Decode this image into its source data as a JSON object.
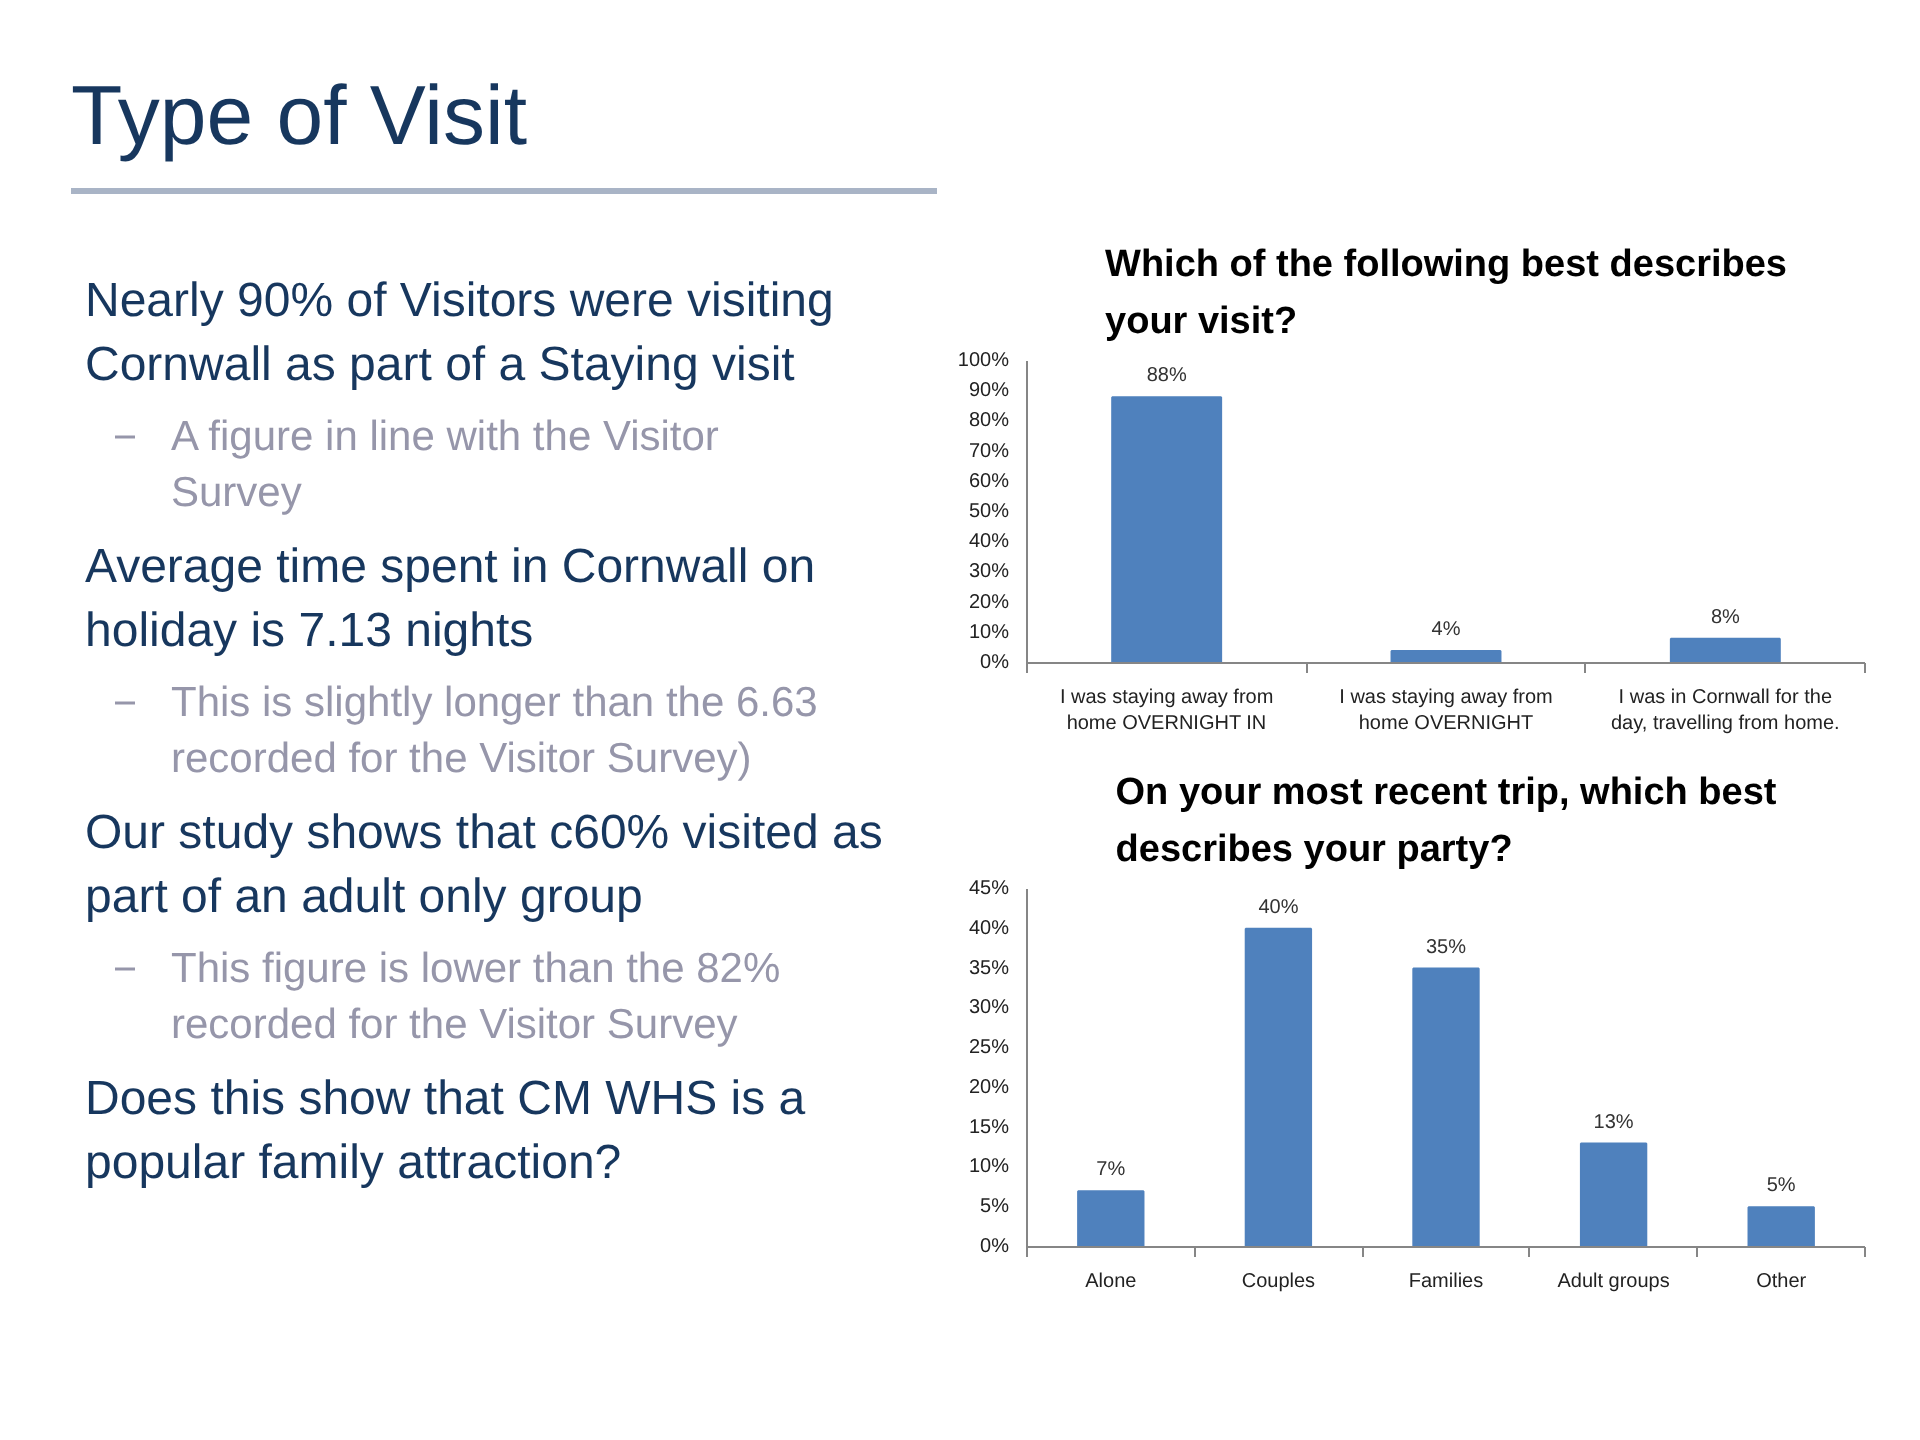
{
  "chart_data": [
    {
      "type": "other",
      "title": "Type of Visit",
      "annotations": [
        "Nearly 90% of Visitors were visiting Cornwall as part of a Staying visit",
        "A figure in line with the Visitor Survey",
        "Average time spent in Cornwall on holiday is 7.13 nights",
        "This is slightly longer than the 6.63 recorded for the Visitor Survey)",
        "Our study shows that c60% visited as part of an adult only group",
        "This figure is lower than the 82% recorded for the Visitor Survey",
        "Does this show that CM WHS is a popular family attraction?"
      ]
    },
    {
      "type": "bar",
      "title": "Which of the following best describes your visit?",
      "categories": [
        "I was staying away from home OVERNIGHT IN",
        "I was staying away from home OVERNIGHT",
        "I was in Cornwall for the day, travelling from home."
      ],
      "values": [
        88,
        4,
        8
      ],
      "color": "#4f81bd",
      "value_labels": [
        "88%",
        "4%",
        "8%"
      ],
      "ylim": [
        0,
        100
      ],
      "yticks": [
        {
          "value": 0,
          "label": "0%"
        },
        {
          "value": 10,
          "label": "10%"
        },
        {
          "value": 20,
          "label": "20%"
        },
        {
          "value": 30,
          "label": "30%"
        },
        {
          "value": 40,
          "label": "40%"
        },
        {
          "value": 50,
          "label": "50%"
        },
        {
          "value": 60,
          "label": "60%"
        },
        {
          "value": 70,
          "label": "70%"
        },
        {
          "value": 80,
          "label": "80%"
        },
        {
          "value": 90,
          "label": "90%"
        },
        {
          "value": 100,
          "label": "100%"
        }
      ]
    },
    {
      "type": "bar",
      "title": "On your most recent trip, which best describes your party?",
      "categories": [
        "Alone",
        "Couples",
        "Families",
        "Adult groups",
        "Other"
      ],
      "values": [
        7,
        40,
        35,
        13,
        5
      ],
      "color": "#4f81bd",
      "value_labels": [
        "7%",
        "40%",
        "35%",
        "13%",
        "5%"
      ],
      "ylim": [
        0,
        45
      ],
      "yticks": [
        {
          "value": 0,
          "label": "0%"
        },
        {
          "value": 5,
          "label": "5%"
        },
        {
          "value": 10,
          "label": "10%"
        },
        {
          "value": 15,
          "label": "15%"
        },
        {
          "value": 20,
          "label": "20%"
        },
        {
          "value": 25,
          "label": "25%"
        },
        {
          "value": 30,
          "label": "30%"
        },
        {
          "value": 35,
          "label": "35%"
        },
        {
          "value": 40,
          "label": "40%"
        },
        {
          "value": 45,
          "label": "45%"
        }
      ]
    }
  ]
}
